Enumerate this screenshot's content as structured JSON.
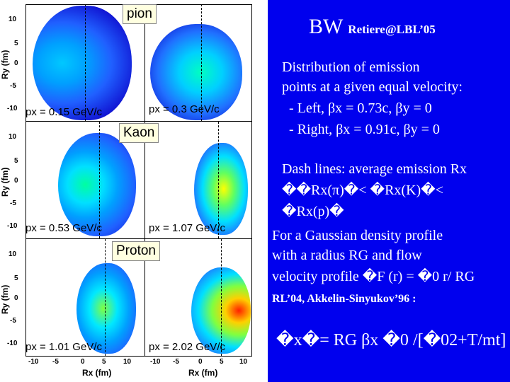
{
  "header": {
    "bw": "BW",
    "credit": "Retiere@LBL’05"
  },
  "plots": {
    "species": [
      "pion",
      "Kaon",
      "Proton"
    ],
    "labels": [
      "px = 0.15 GeV/c",
      "px = 0.3 GeV/c",
      "px = 0.53 GeV/c",
      "px = 1.07 GeV/c",
      "px = 1.01 GeV/c",
      "px = 2.02 GeV/c"
    ],
    "y_ticks": [
      "10",
      "5",
      "0",
      "-5",
      "-10"
    ],
    "x_ticks": [
      "-10",
      "-5",
      "0",
      "5",
      "10"
    ],
    "y_axis": "Ry (fm)",
    "x_axis": "Rx (fm)"
  },
  "text": {
    "intro1": "Distribution of emission",
    "intro2": "points at a given equal velocity:",
    "left": "- Left, βx = 0.73c, βy = 0",
    "right": "- Right, βx = 0.91c, βy = 0",
    "dash": "Dash lines: average emission Rx",
    "order1": "��Rx(π)�< �Rx(K)�<",
    "order2": "�Rx(p)�",
    "gauss1": "For a Gaussian density profile",
    "gauss2": "with a radius RG and flow",
    "gauss3": "velocity profile �F (r) = �0 r/ RG",
    "ref": "RL’04, Akkelin-Sinyukov’96 :",
    "formula": "�x�= RG βx �0 /[�02+T/mt]"
  },
  "colors": {
    "background": "#0000ee",
    "text": "#ffffff"
  }
}
